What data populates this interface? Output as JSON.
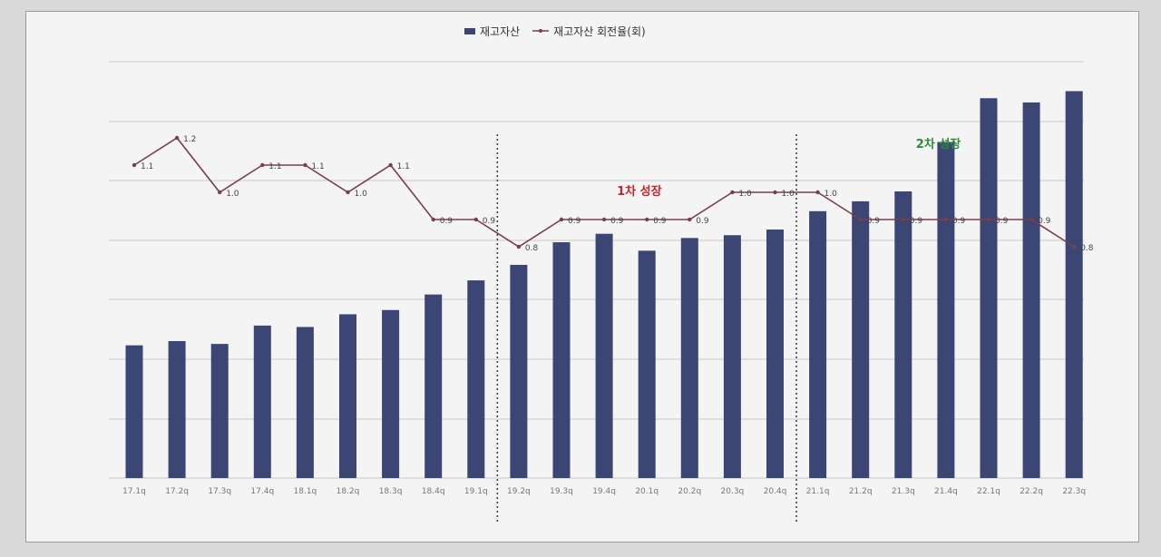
{
  "chart_data": {
    "type": "bar+line",
    "categories": [
      "17.1q",
      "17.2q",
      "17.3q",
      "17.4q",
      "18.1q",
      "18.2q",
      "18.3q",
      "18.4q",
      "19.1q",
      "19.2q",
      "19.3q",
      "19.4q",
      "20.1q",
      "20.2q",
      "20.3q",
      "20.4q",
      "21.1q",
      "21.2q",
      "21.3q",
      "21.4q",
      "22.1q",
      "22.2q",
      "22.3q"
    ],
    "series": [
      {
        "name": "재고자산",
        "kind": "bar",
        "axis": "right",
        "color": "#3b4675",
        "values": [
          47000,
          48500,
          47500,
          54000,
          53500,
          58000,
          59500,
          65000,
          70000,
          75500,
          83500,
          86500,
          80500,
          85000,
          86000,
          88000,
          94500,
          98000,
          101500,
          119000,
          134500,
          133000,
          137000
        ]
      },
      {
        "name": "재고자산 회전율(회)",
        "kind": "line",
        "axis": "left",
        "color": "#7a3f48",
        "values": [
          1.1,
          1.2,
          1.0,
          1.1,
          1.1,
          1.0,
          1.1,
          0.9,
          0.9,
          0.8,
          0.9,
          0.9,
          0.9,
          0.9,
          1.0,
          1.0,
          1.0,
          0.9,
          0.9,
          0.9,
          0.9,
          0.9,
          0.8
        ],
        "labels": [
          "1.1",
          "1.2",
          "1.0",
          "1.1",
          "1.1",
          "1.0",
          "1.1",
          "0.9",
          "0.9",
          "0.8",
          "0.9",
          "0.9",
          "0.9",
          "0.9",
          "1.0",
          "1.0",
          "1.0",
          "0.9",
          "0.9",
          "0.9",
          "0.9",
          "0.9",
          "0.8"
        ]
      }
    ],
    "annotations": [
      {
        "text": "1차 성장",
        "color": "#c0272d",
        "at_category": "19.4q"
      },
      {
        "text": "2차 성장",
        "color": "#2e8b3a",
        "at_category": "21.3q"
      }
    ],
    "divider_after": [
      "19.1q",
      "20.4q"
    ],
    "grid": true,
    "legend": "top-center",
    "colors": {
      "bar": "#3b4675",
      "line": "#7a3f48",
      "grid": "#c9c9c9",
      "divider": "#333355",
      "axis_text": "#777777"
    }
  }
}
